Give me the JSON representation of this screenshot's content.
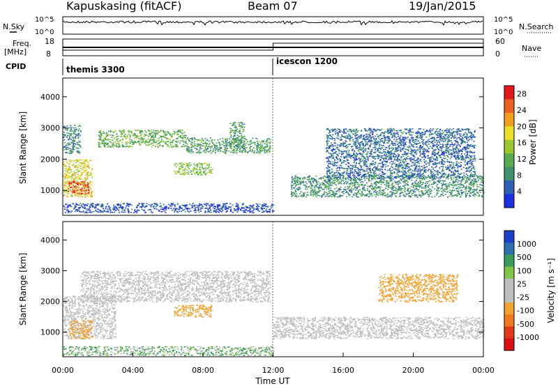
{
  "header": {
    "station": "Kapuskasing (fitACF)",
    "beam": "Beam 07",
    "date": "19/Jan/2015"
  },
  "colors": {
    "power": [
      "#1e2fe0",
      "#2f5fb0",
      "#3f8f70",
      "#58ab53",
      "#9ac832",
      "#e8e02a",
      "#f0a020",
      "#ea6020",
      "#e01818"
    ],
    "velocity": [
      "#1e3fc8",
      "#2f6fb0",
      "#3b9a5a",
      "#7ec34a",
      "#bebebe",
      "#bebebe",
      "#f0a232",
      "#ef7a20",
      "#e03818",
      "#d81010"
    ]
  },
  "chart_data": [
    {
      "type": "line",
      "name": "N.Sky / N.Search",
      "left_label": "N.Sky",
      "right_label": "N.Search",
      "left_ticks": [
        "10^5",
        "10^0"
      ],
      "right_ticks": [
        "10^5",
        "10^0"
      ]
    },
    {
      "type": "line",
      "name": "Freq / Nave",
      "left_label": "Freq.",
      "left_unit": "[MHz]",
      "right_label": "Nave",
      "left_ticks": [
        18,
        8
      ],
      "right_ticks": [
        60,
        0
      ],
      "left_ylim": [
        8,
        18
      ],
      "right_ylim": [
        0,
        60
      ],
      "freq": [
        {
          "x": "00:00",
          "y": 13
        },
        {
          "x": "24:00",
          "y": 13
        }
      ],
      "nave": [
        {
          "x": "00:00",
          "y": 20
        },
        {
          "x": "12:00",
          "y": 20
        },
        {
          "x": "12:00",
          "y": 45
        },
        {
          "x": "24:00",
          "y": 45
        }
      ]
    },
    {
      "type": "table",
      "name": "CPID",
      "label": "CPID",
      "segments": [
        {
          "start": "00:00",
          "end": "12:00",
          "label": "themis 3300"
        },
        {
          "start": "12:00",
          "end": "24:00",
          "label": "icescon 1200"
        }
      ]
    },
    {
      "type": "heatmap",
      "name": "Power",
      "ylabel": "Slant Range [km]",
      "yticks": [
        1000,
        2000,
        3000,
        4000
      ],
      "ylim": [
        200,
        4600
      ],
      "colorbar_label": "Power [dB]",
      "colorbar_ticks": [
        4,
        8,
        12,
        16,
        20,
        24,
        28
      ],
      "colorbar_range": [
        0,
        30
      ],
      "regions": [
        {
          "start": "00:00",
          "end": "01:40",
          "r0": 800,
          "r1": 2000,
          "level": 18
        },
        {
          "start": "00:15",
          "end": "01:30",
          "r0": 900,
          "r1": 1300,
          "level": 26
        },
        {
          "start": "00:00",
          "end": "01:00",
          "r0": 2200,
          "r1": 3100,
          "level": 8
        },
        {
          "start": "02:00",
          "end": "07:00",
          "r0": 2400,
          "r1": 2950,
          "level": 12
        },
        {
          "start": "07:00",
          "end": "11:50",
          "r0": 2200,
          "r1": 2700,
          "level": 10
        },
        {
          "start": "06:20",
          "end": "08:30",
          "r0": 1500,
          "r1": 1900,
          "level": 14
        },
        {
          "start": "09:30",
          "end": "10:20",
          "r0": 2400,
          "r1": 3200,
          "level": 10
        },
        {
          "start": "13:00",
          "end": "24:00",
          "r0": 800,
          "r1": 1500,
          "level": 9
        },
        {
          "start": "15:00",
          "end": "23:30",
          "r0": 1400,
          "r1": 3000,
          "level": 6
        },
        {
          "start": "00:00",
          "end": "12:00",
          "r0": 300,
          "r1": 600,
          "level": 4
        }
      ]
    },
    {
      "type": "heatmap",
      "name": "Velocity",
      "xlabel": "Time UT",
      "ylabel": "Slant Range [km]",
      "xticks": [
        "00:00",
        "04:00",
        "08:00",
        "12:00",
        "16:00",
        "20:00",
        "00:00"
      ],
      "yticks": [
        1000,
        2000,
        3000,
        4000
      ],
      "ylim": [
        200,
        4600
      ],
      "colorbar_label": "Velocity [m s⁻¹]",
      "colorbar_ticks": [
        1000,
        500,
        100,
        25,
        -25,
        -100,
        -500,
        -1000
      ],
      "regions": [
        {
          "start": "00:00",
          "end": "03:00",
          "r0": 800,
          "r1": 2200,
          "level": 0
        },
        {
          "start": "01:00",
          "end": "11:50",
          "r0": 2000,
          "r1": 3000,
          "level": 0
        },
        {
          "start": "00:20",
          "end": "01:40",
          "r0": 800,
          "r1": 1400,
          "level": -150
        },
        {
          "start": "06:20",
          "end": "08:30",
          "r0": 1500,
          "r1": 1900,
          "level": -150
        },
        {
          "start": "12:00",
          "end": "24:00",
          "r0": 800,
          "r1": 1500,
          "level": 0
        },
        {
          "start": "18:00",
          "end": "22:30",
          "r0": 2000,
          "r1": 2900,
          "level": -200
        },
        {
          "start": "00:00",
          "end": "12:00",
          "r0": 250,
          "r1": 550,
          "level": 50
        }
      ]
    }
  ]
}
